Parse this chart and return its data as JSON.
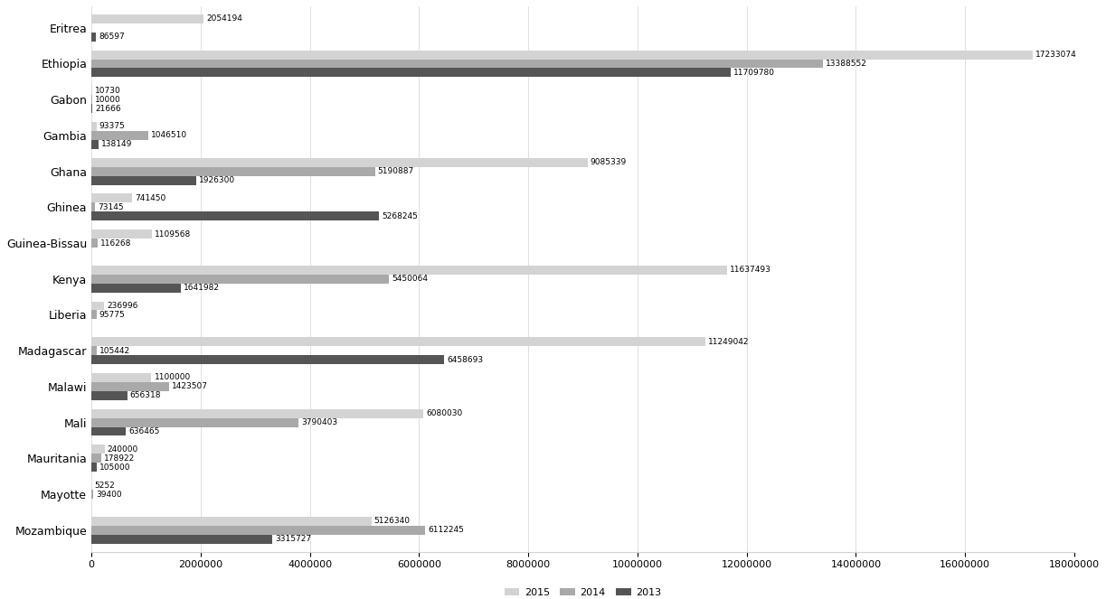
{
  "categories": [
    "Mozambique",
    "Mayotte",
    "Mauritania",
    "Mali",
    "Malawi",
    "Madagascar",
    "Liberia",
    "Kenya",
    "Guinea-Bissau",
    "Ghinea",
    "Ghana",
    "Gambia",
    "Gabon",
    "Ethiopia",
    "Eritrea"
  ],
  "values_2015": [
    5126340,
    5252,
    240000,
    6080030,
    1100000,
    11249042,
    236996,
    11637493,
    1109568,
    741450,
    9085339,
    93375,
    10730,
    17233074,
    2054194
  ],
  "values_2014": [
    6112245,
    39400,
    178922,
    3790403,
    1423507,
    105442,
    95775,
    5450064,
    116268,
    73145,
    5190887,
    1046510,
    10000,
    13388552,
    0
  ],
  "values_2013": [
    3315727,
    0,
    105000,
    636465,
    656318,
    6458693,
    0,
    1641982,
    0,
    5268245,
    1926300,
    138149,
    21666,
    11709780,
    86597
  ],
  "color_2015": "#d3d3d3",
  "color_2014": "#a9a9a9",
  "color_2013": "#555555",
  "bar_height": 0.25,
  "xlim": [
    0,
    18000000
  ],
  "xticks": [
    0,
    2000000,
    4000000,
    6000000,
    8000000,
    10000000,
    12000000,
    14000000,
    16000000,
    18000000
  ],
  "legend_labels": [
    "2015",
    "2014",
    "2013"
  ],
  "label_fontsize": 6.5,
  "tick_fontsize": 8,
  "category_fontsize": 9
}
